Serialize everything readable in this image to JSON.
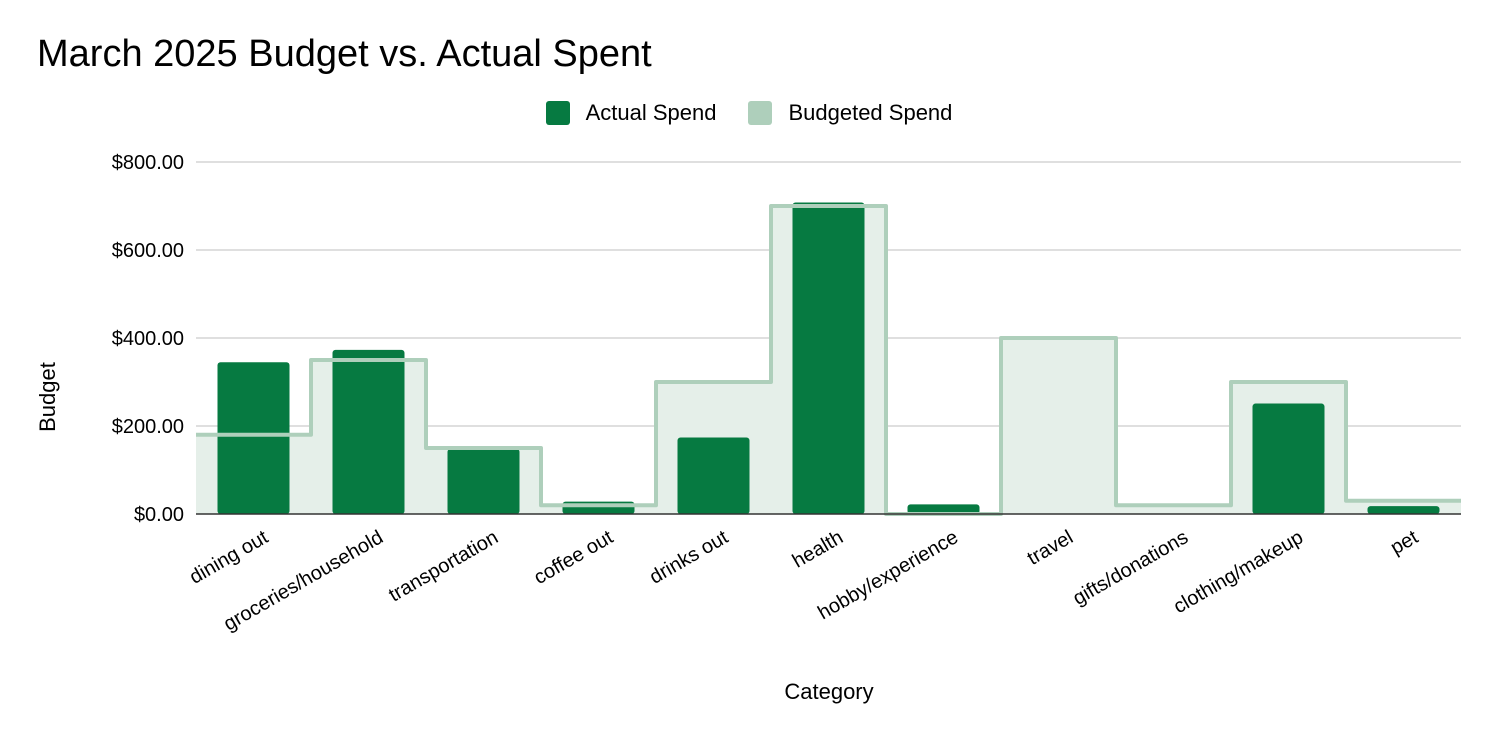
{
  "chart_data": {
    "type": "bar",
    "title": "March 2025 Budget vs. Actual Spent",
    "xlabel": "Category",
    "ylabel": "Budget",
    "ylim": [
      0,
      800
    ],
    "yticks": [
      "$0.00",
      "$200.00",
      "$400.00",
      "$600.00",
      "$800.00"
    ],
    "ytick_values": [
      0,
      200,
      400,
      600,
      800
    ],
    "grid": true,
    "legend_position": "top",
    "categories": [
      "dining out",
      "groceries/household",
      "transportation",
      "coffee out",
      "drinks out",
      "health",
      "hobby/experience",
      "travel",
      "gifts/donations",
      "clothing/makeup",
      "pet"
    ],
    "series": [
      {
        "name": "Actual Spend",
        "type": "bar",
        "color": "#067a41",
        "values": [
          345,
          373,
          148,
          28,
          174,
          708,
          22,
          0,
          0,
          251,
          18
        ]
      },
      {
        "name": "Budgeted Spend",
        "type": "stepped-area",
        "color": "#aecfbb",
        "fill": "#e5efe9",
        "values": [
          180,
          350,
          150,
          20,
          300,
          700,
          0,
          400,
          20,
          300,
          30
        ]
      }
    ]
  }
}
